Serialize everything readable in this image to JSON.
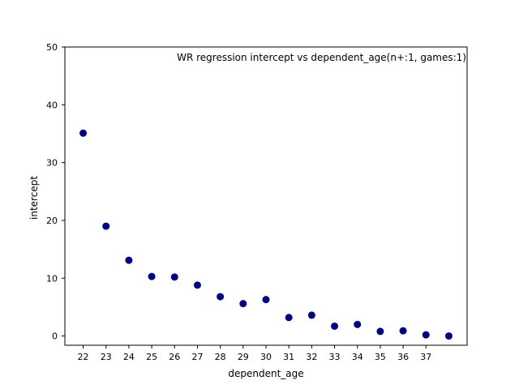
{
  "chart_data": {
    "type": "scatter",
    "title": "WR regression intercept vs dependent_age(n+:1, games:1)",
    "xlabel": "dependent_age",
    "ylabel": "intercept",
    "x_ticks": [
      22,
      23,
      24,
      25,
      26,
      27,
      28,
      29,
      30,
      31,
      32,
      33,
      34,
      35,
      36,
      37
    ],
    "y_ticks": [
      0,
      10,
      20,
      30,
      40,
      50
    ],
    "xlim": [
      21.2,
      38.8
    ],
    "ylim": [
      -1.6,
      50
    ],
    "grid": false,
    "marker_color": "#000080",
    "x": [
      22,
      23,
      24,
      25,
      26,
      27,
      28,
      29,
      30,
      31,
      32,
      33,
      34,
      35,
      36,
      37,
      38
    ],
    "y": [
      35.1,
      19.0,
      13.1,
      10.3,
      10.2,
      8.8,
      6.8,
      5.6,
      6.3,
      3.2,
      3.6,
      1.7,
      2.0,
      0.8,
      0.9,
      0.2,
      0.0
    ]
  }
}
